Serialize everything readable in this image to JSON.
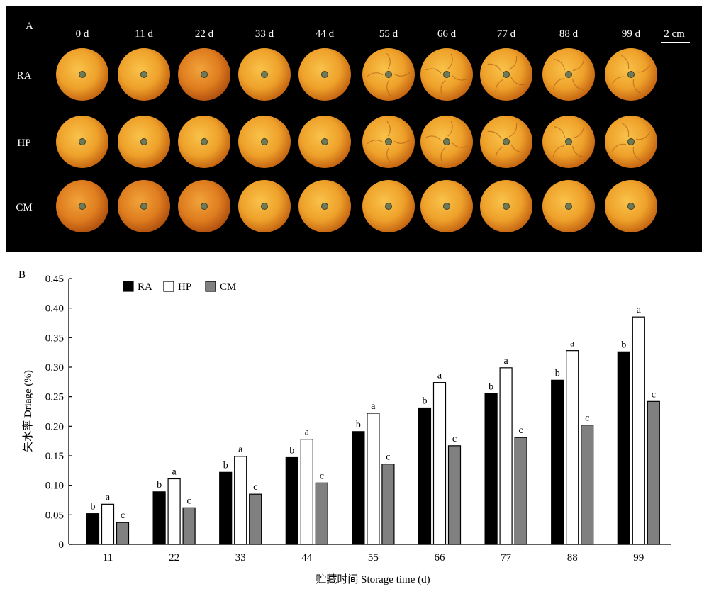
{
  "panel_a": {
    "label": "A",
    "days": [
      "0 d",
      "11 d",
      "22 d",
      "33 d",
      "44 d",
      "55 d",
      "66 d",
      "77 d",
      "88 d",
      "99 d"
    ],
    "treatments": [
      "RA",
      "HP",
      "CM"
    ],
    "scale_bar": "2 cm",
    "colors": {
      "background": "#000000",
      "fruit_light": "#f6b53a",
      "fruit_dark": "#cf6a12",
      "stem": "#6d7a55"
    }
  },
  "panel_b": {
    "label": "B"
  },
  "chart_data": {
    "type": "bar",
    "title": "",
    "xlabel": "贮藏时间 Storage time (d)",
    "ylabel": "失水率 Driage (%)",
    "categories": [
      "11",
      "22",
      "33",
      "44",
      "55",
      "66",
      "77",
      "88",
      "99"
    ],
    "ylim": [
      0,
      0.45
    ],
    "yticks": [
      "0",
      "0.05",
      "0.10",
      "0.15",
      "0.20",
      "0.25",
      "0.30",
      "0.35",
      "0.40",
      "0.45"
    ],
    "legend_position": "top-left",
    "grid": false,
    "series": [
      {
        "name": "RA",
        "color": "#000000",
        "values": [
          0.052,
          0.089,
          0.122,
          0.147,
          0.191,
          0.231,
          0.255,
          0.278,
          0.326
        ],
        "labels": [
          "b",
          "b",
          "b",
          "b",
          "b",
          "b",
          "b",
          "b",
          "b"
        ]
      },
      {
        "name": "HP",
        "color": "#ffffff",
        "values": [
          0.068,
          0.111,
          0.149,
          0.178,
          0.222,
          0.274,
          0.299,
          0.328,
          0.385
        ],
        "labels": [
          "a",
          "a",
          "a",
          "a",
          "a",
          "a",
          "a",
          "a",
          "a"
        ]
      },
      {
        "name": "CM",
        "color": "#808080",
        "values": [
          0.037,
          0.062,
          0.085,
          0.104,
          0.136,
          0.167,
          0.181,
          0.202,
          0.242
        ],
        "labels": [
          "c",
          "c",
          "c",
          "c",
          "c",
          "c",
          "c",
          "c",
          "c"
        ]
      }
    ]
  }
}
